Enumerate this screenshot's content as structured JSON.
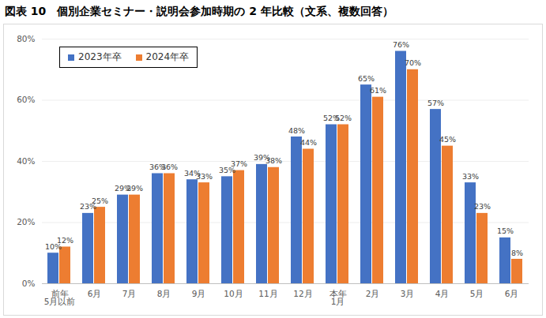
{
  "chart_data": {
    "type": "bar",
    "title": "図表 10　個別企業セミナー・説明会参加時期の 2 年比較（文系、複数回答）",
    "categories": [
      "前年\n5月以前",
      "6月",
      "7月",
      "8月",
      "9月",
      "10月",
      "11月",
      "12月",
      "本年\n1月",
      "2月",
      "3月",
      "4月",
      "5月",
      "6月"
    ],
    "series": [
      {
        "name": "2023年卒",
        "color": "#4472c4",
        "values": [
          10,
          23,
          29,
          36,
          34,
          35,
          39,
          48,
          52,
          65,
          76,
          57,
          33,
          15
        ],
        "value_labels": [
          "10%",
          "23%",
          "29%",
          "36%",
          "34%",
          "35%",
          "39%",
          "48%",
          "52%",
          "65%",
          "76%",
          "57%",
          "33%",
          "15%"
        ]
      },
      {
        "name": "2024年卒",
        "color": "#ed7d31",
        "values": [
          12,
          25,
          29,
          36,
          33,
          37,
          38,
          44,
          52,
          61,
          70,
          45,
          23,
          8
        ],
        "value_labels": [
          "12%",
          "25%",
          "29%",
          "36%",
          "33%",
          "37%",
          "38%",
          "44%",
          "52%",
          "61%",
          "70%",
          "45%",
          "23%",
          "8%"
        ]
      }
    ],
    "ylim": [
      0,
      80
    ],
    "yticks": [
      {
        "value": 0,
        "label": "0%"
      },
      {
        "value": 20,
        "label": "20%"
      },
      {
        "value": 40,
        "label": "40%"
      },
      {
        "value": 60,
        "label": "60%"
      },
      {
        "value": 80,
        "label": "80%"
      }
    ],
    "grid": true,
    "legend": "upper left",
    "data_labels": true
  }
}
